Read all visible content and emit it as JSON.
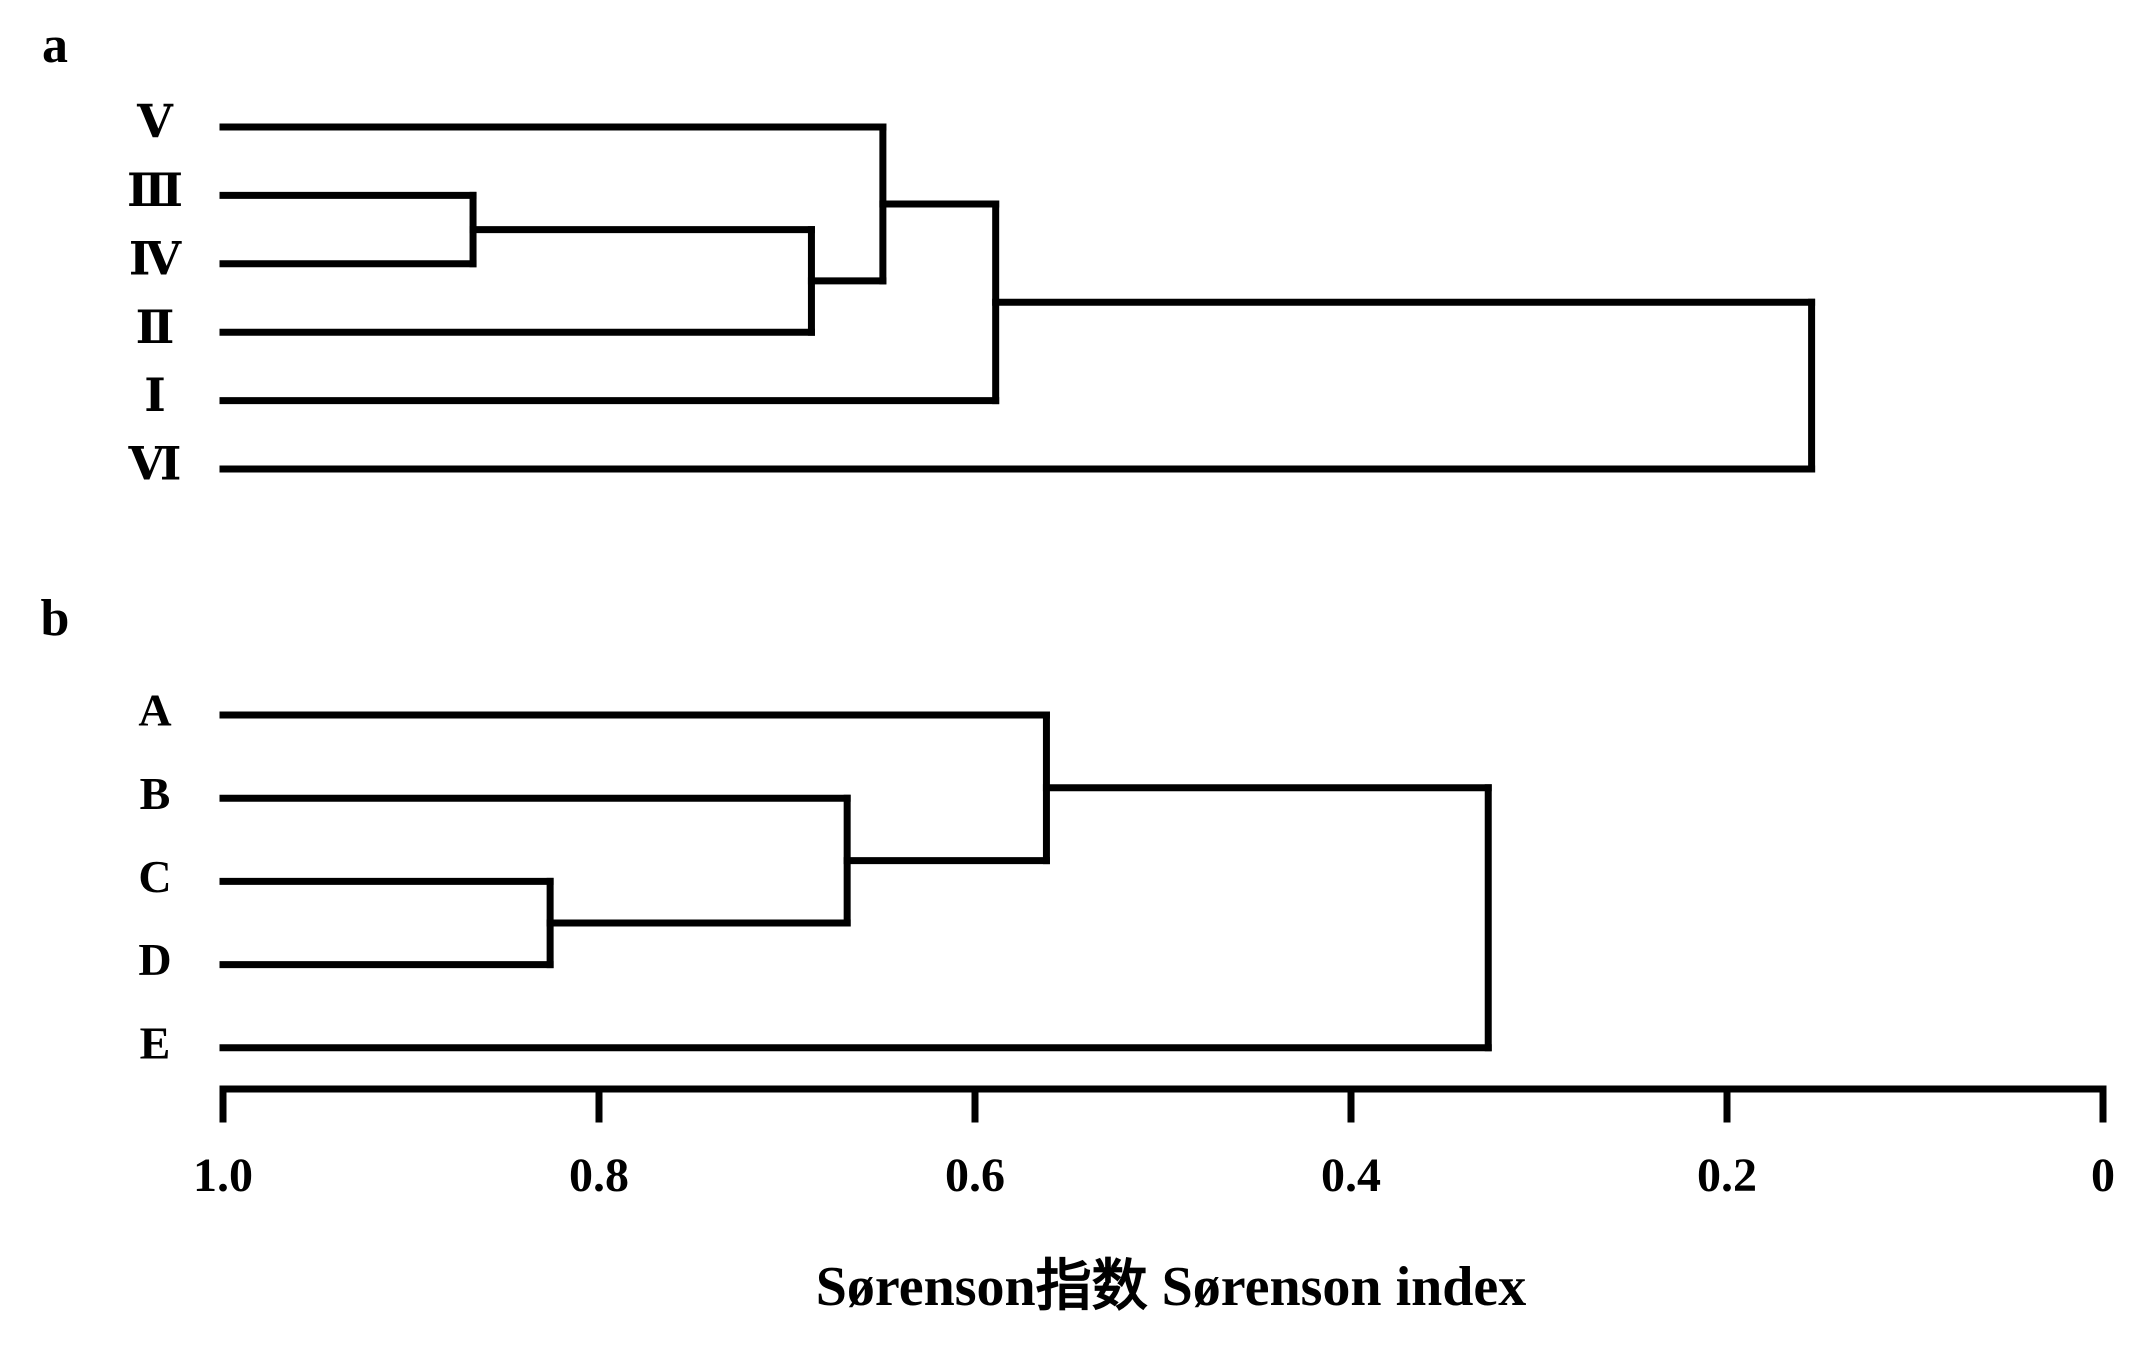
{
  "chart_data": {
    "type": "dendrogram",
    "panels": [
      {
        "label": "a",
        "tree": {
          "value": 0.155,
          "children": [
            {
              "value": 0.589,
              "children": [
                {
                  "value": 0.649,
                  "children": [
                    "Ⅴ",
                    {
                      "value": 0.687,
                      "children": [
                        {
                          "value": 0.867,
                          "children": [
                            "Ⅲ",
                            "Ⅳ"
                          ]
                        },
                        "Ⅱ"
                      ]
                    }
                  ]
                },
                "Ⅰ"
              ]
            },
            "Ⅵ"
          ]
        }
      },
      {
        "label": "b",
        "tree": {
          "value": 0.327,
          "children": [
            {
              "value": 0.562,
              "children": [
                "A",
                {
                  "value": 0.668,
                  "children": [
                    "B",
                    {
                      "value": 0.826,
                      "children": [
                        "C",
                        "D"
                      ]
                    }
                  ]
                }
              ]
            },
            "E"
          ]
        }
      }
    ],
    "xlim": [
      1,
      0
    ],
    "xticks": [
      {
        "value": 1,
        "label": "1.0"
      },
      0.8,
      0.6,
      0.4,
      0.2,
      0
    ],
    "xlabel": "Sørenson指数  Sørenson index"
  }
}
